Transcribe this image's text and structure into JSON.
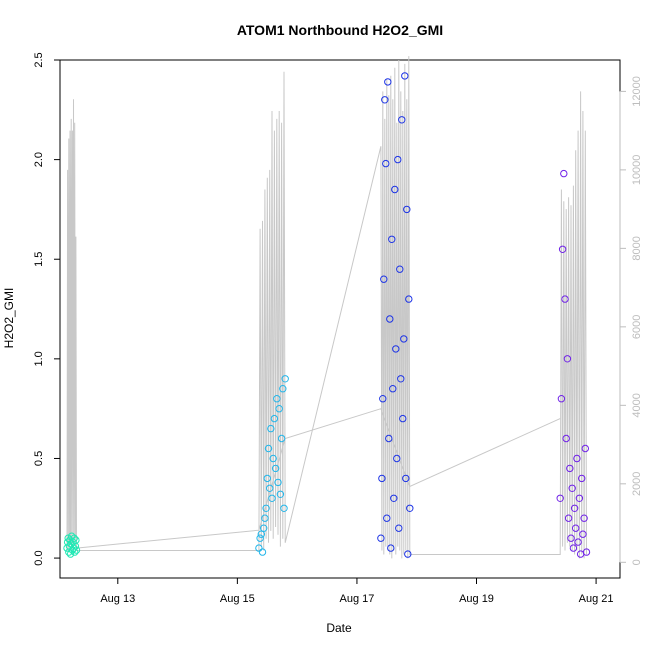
{
  "chart_data": {
    "type": "scatter",
    "title": "ATOM1 Northbound H2O2_GMI",
    "xlabel": "Date",
    "ylabel": "H2O2_GMI",
    "xlim": [
      "2016-08-12 00:48",
      "2016-08-21 09:36"
    ],
    "ylim": [
      -0.1,
      2.5
    ],
    "y2lim": [
      -400,
      12800
    ],
    "x_ticks": [
      {
        "date": "2016-08-13",
        "label": "Aug 13"
      },
      {
        "date": "2016-08-15",
        "label": "Aug 15"
      },
      {
        "date": "2016-08-17",
        "label": "Aug 17"
      },
      {
        "date": "2016-08-19",
        "label": "Aug 19"
      },
      {
        "date": "2016-08-21",
        "label": "Aug 21"
      }
    ],
    "y_ticks": [
      0.0,
      0.5,
      1.0,
      1.5,
      2.0,
      2.5
    ],
    "y_tick_labels": [
      "0.0",
      "0.5",
      "1.0",
      "1.5",
      "2.0",
      "2.5"
    ],
    "y2_ticks": [
      0,
      2000,
      4000,
      6000,
      8000,
      10000,
      12000
    ],
    "y2_tick_labels": [
      "0",
      "2000",
      "4000",
      "6000",
      "8000",
      "10000",
      "12000"
    ],
    "grid": false,
    "colors": {
      "flight1": "#1fe8b4",
      "flight2": "#22b6ea",
      "flight3": "#1d34e6",
      "flight4": "#7022e8",
      "altitude": "#c8c8c8",
      "connector": "#c8c8c8",
      "axis": "#000000",
      "right_axis": "#bdbdbd"
    },
    "series": [
      {
        "color_key": "flight1",
        "x": [
          "2016-08-12 03:36",
          "2016-08-12 03:50",
          "2016-08-12 04:05",
          "2016-08-12 04:19",
          "2016-08-12 04:34",
          "2016-08-12 04:48",
          "2016-08-12 05:02",
          "2016-08-12 05:17",
          "2016-08-12 05:31",
          "2016-08-12 05:46",
          "2016-08-12 06:00",
          "2016-08-12 06:14",
          "2016-08-12 06:29",
          "2016-08-12 06:43",
          "2016-08-12 06:58",
          "2016-08-12 07:12",
          "2016-08-12 07:26"
        ],
        "y": [
          0.05,
          0.08,
          0.1,
          0.03,
          0.06,
          0.09,
          0.02,
          0.07,
          0.11,
          0.04,
          0.08,
          0.05,
          0.1,
          0.03,
          0.06,
          0.09,
          0.04
        ]
      },
      {
        "color_key": "flight2",
        "x": [
          "2016-08-15 08:38",
          "2016-08-15 09:07",
          "2016-08-15 09:36",
          "2016-08-15 10:05",
          "2016-08-15 10:34",
          "2016-08-15 11:02",
          "2016-08-15 11:31",
          "2016-08-15 12:00",
          "2016-08-15 12:29",
          "2016-08-15 12:58",
          "2016-08-15 13:26",
          "2016-08-15 13:55",
          "2016-08-15 14:24",
          "2016-08-15 14:53",
          "2016-08-15 15:22",
          "2016-08-15 15:50",
          "2016-08-15 16:19",
          "2016-08-15 16:48",
          "2016-08-15 17:17",
          "2016-08-15 17:46",
          "2016-08-15 18:14",
          "2016-08-15 18:43",
          "2016-08-15 19:12"
        ],
        "y": [
          0.05,
          0.1,
          0.12,
          0.03,
          0.15,
          0.2,
          0.25,
          0.4,
          0.55,
          0.35,
          0.65,
          0.3,
          0.5,
          0.7,
          0.45,
          0.8,
          0.38,
          0.75,
          0.32,
          0.6,
          0.85,
          0.25,
          0.9
        ]
      },
      {
        "color_key": "flight3",
        "x": [
          "2016-08-17 09:36",
          "2016-08-17 10:00",
          "2016-08-17 10:24",
          "2016-08-17 10:48",
          "2016-08-17 11:12",
          "2016-08-17 11:36",
          "2016-08-17 12:00",
          "2016-08-17 12:24",
          "2016-08-17 12:48",
          "2016-08-17 13:12",
          "2016-08-17 13:36",
          "2016-08-17 14:00",
          "2016-08-17 14:24",
          "2016-08-17 14:48",
          "2016-08-17 15:12",
          "2016-08-17 15:36",
          "2016-08-17 16:00",
          "2016-08-17 16:24",
          "2016-08-17 16:48",
          "2016-08-17 17:12",
          "2016-08-17 17:36",
          "2016-08-17 18:00",
          "2016-08-17 18:24",
          "2016-08-17 18:48",
          "2016-08-17 19:12",
          "2016-08-17 19:36",
          "2016-08-17 20:00",
          "2016-08-17 20:24",
          "2016-08-17 20:48",
          "2016-08-17 21:12"
        ],
        "y": [
          0.1,
          0.4,
          0.8,
          1.4,
          2.3,
          1.98,
          0.2,
          2.39,
          0.6,
          1.2,
          0.05,
          1.6,
          0.85,
          0.3,
          1.85,
          1.05,
          0.5,
          2.0,
          0.15,
          1.45,
          0.9,
          2.2,
          0.7,
          1.1,
          2.42,
          0.4,
          1.75,
          0.02,
          1.3,
          0.25
        ]
      },
      {
        "color_key": "flight4",
        "x": [
          "2016-08-20 09:36",
          "2016-08-20 10:05",
          "2016-08-20 10:34",
          "2016-08-20 11:02",
          "2016-08-20 11:31",
          "2016-08-20 12:00",
          "2016-08-20 12:29",
          "2016-08-20 12:58",
          "2016-08-20 13:26",
          "2016-08-20 13:55",
          "2016-08-20 14:24",
          "2016-08-20 14:53",
          "2016-08-20 15:22",
          "2016-08-20 15:50",
          "2016-08-20 16:19",
          "2016-08-20 16:48",
          "2016-08-20 17:17",
          "2016-08-20 17:46",
          "2016-08-20 18:14",
          "2016-08-20 18:43",
          "2016-08-20 19:12",
          "2016-08-20 19:41",
          "2016-08-20 20:10"
        ],
        "y": [
          0.3,
          0.8,
          1.55,
          1.93,
          1.3,
          0.6,
          1.0,
          0.2,
          0.45,
          0.1,
          0.35,
          0.05,
          0.25,
          0.15,
          0.5,
          0.08,
          0.3,
          0.02,
          0.4,
          0.12,
          0.2,
          0.55,
          0.03
        ]
      }
    ],
    "altitude_series": {
      "color_key": "altitude",
      "x": [
        "2016-08-12 03:36",
        "2016-08-12 03:50",
        "2016-08-12 04:05",
        "2016-08-12 04:19",
        "2016-08-12 04:34",
        "2016-08-12 04:48",
        "2016-08-12 05:02",
        "2016-08-12 05:17",
        "2016-08-12 05:31",
        "2016-08-12 05:46",
        "2016-08-12 06:00",
        "2016-08-12 06:14",
        "2016-08-12 06:29",
        "2016-08-12 06:43",
        "2016-08-12 06:58",
        "2016-08-12 07:12",
        "2016-08-12 07:26",
        "2016-08-15 08:38",
        "2016-08-15 09:07",
        "2016-08-15 09:36",
        "2016-08-15 10:05",
        "2016-08-15 10:34",
        "2016-08-15 11:02",
        "2016-08-15 11:31",
        "2016-08-15 12:00",
        "2016-08-15 12:29",
        "2016-08-15 12:58",
        "2016-08-15 13:26",
        "2016-08-15 13:55",
        "2016-08-15 14:24",
        "2016-08-15 14:53",
        "2016-08-15 15:22",
        "2016-08-15 15:50",
        "2016-08-15 16:19",
        "2016-08-15 16:48",
        "2016-08-15 17:17",
        "2016-08-15 17:46",
        "2016-08-15 18:14",
        "2016-08-15 18:43",
        "2016-08-15 19:12",
        "2016-08-17 09:36",
        "2016-08-17 10:00",
        "2016-08-17 10:24",
        "2016-08-17 10:48",
        "2016-08-17 11:12",
        "2016-08-17 11:36",
        "2016-08-17 12:00",
        "2016-08-17 12:24",
        "2016-08-17 12:48",
        "2016-08-17 13:12",
        "2016-08-17 13:36",
        "2016-08-17 14:00",
        "2016-08-17 14:24",
        "2016-08-17 14:48",
        "2016-08-17 15:12",
        "2016-08-17 15:36",
        "2016-08-17 16:00",
        "2016-08-17 16:24",
        "2016-08-17 16:48",
        "2016-08-17 17:12",
        "2016-08-17 17:36",
        "2016-08-17 18:00",
        "2016-08-17 18:24",
        "2016-08-17 18:48",
        "2016-08-17 19:12",
        "2016-08-17 19:36",
        "2016-08-17 20:00",
        "2016-08-17 20:24",
        "2016-08-17 20:48",
        "2016-08-17 21:12",
        "2016-08-20 09:36",
        "2016-08-20 10:05",
        "2016-08-20 10:34",
        "2016-08-20 11:02",
        "2016-08-20 11:31",
        "2016-08-20 12:00",
        "2016-08-20 12:29",
        "2016-08-20 12:58",
        "2016-08-20 13:26",
        "2016-08-20 13:55",
        "2016-08-20 14:24",
        "2016-08-20 14:53",
        "2016-08-20 15:22",
        "2016-08-20 15:50",
        "2016-08-20 16:19",
        "2016-08-20 16:48",
        "2016-08-20 17:17",
        "2016-08-20 17:46",
        "2016-08-20 18:14",
        "2016-08-20 18:43",
        "2016-08-20 19:12",
        "2016-08-20 19:41",
        "2016-08-20 20:10"
      ],
      "y": [
        300,
        10000,
        300,
        10800,
        400,
        11000,
        500,
        11300,
        300,
        11000,
        400,
        11800,
        500,
        11200,
        600,
        8300,
        300,
        300,
        8500,
        400,
        8700,
        300,
        9500,
        600,
        9800,
        500,
        10000,
        800,
        11500,
        600,
        11000,
        900,
        11300,
        700,
        11500,
        400,
        11200,
        600,
        12500,
        500,
        10600,
        300,
        12000,
        200,
        11300,
        400,
        12300,
        300,
        11900,
        200,
        12400,
        100,
        11800,
        300,
        12600,
        200,
        11200,
        400,
        12800,
        300,
        12000,
        100,
        11500,
        200,
        12700,
        300,
        11800,
        100,
        12900,
        200,
        200,
        9500,
        400,
        9200,
        300,
        9000,
        500,
        9300,
        400,
        9100,
        300,
        9600,
        200,
        10500,
        300,
        11000,
        100,
        12000,
        200,
        11500,
        100,
        11000,
        200
      ]
    },
    "connector": {
      "color_key": "connector",
      "x": [
        "2016-08-12 07:26",
        "2016-08-15 08:38",
        "2016-08-15 19:12",
        "2016-08-17 09:36",
        "2016-08-17 21:12",
        "2016-08-20 09:36"
      ],
      "y": [
        0.05,
        0.14,
        0.6,
        0.75,
        0.36,
        0.7
      ]
    }
  }
}
